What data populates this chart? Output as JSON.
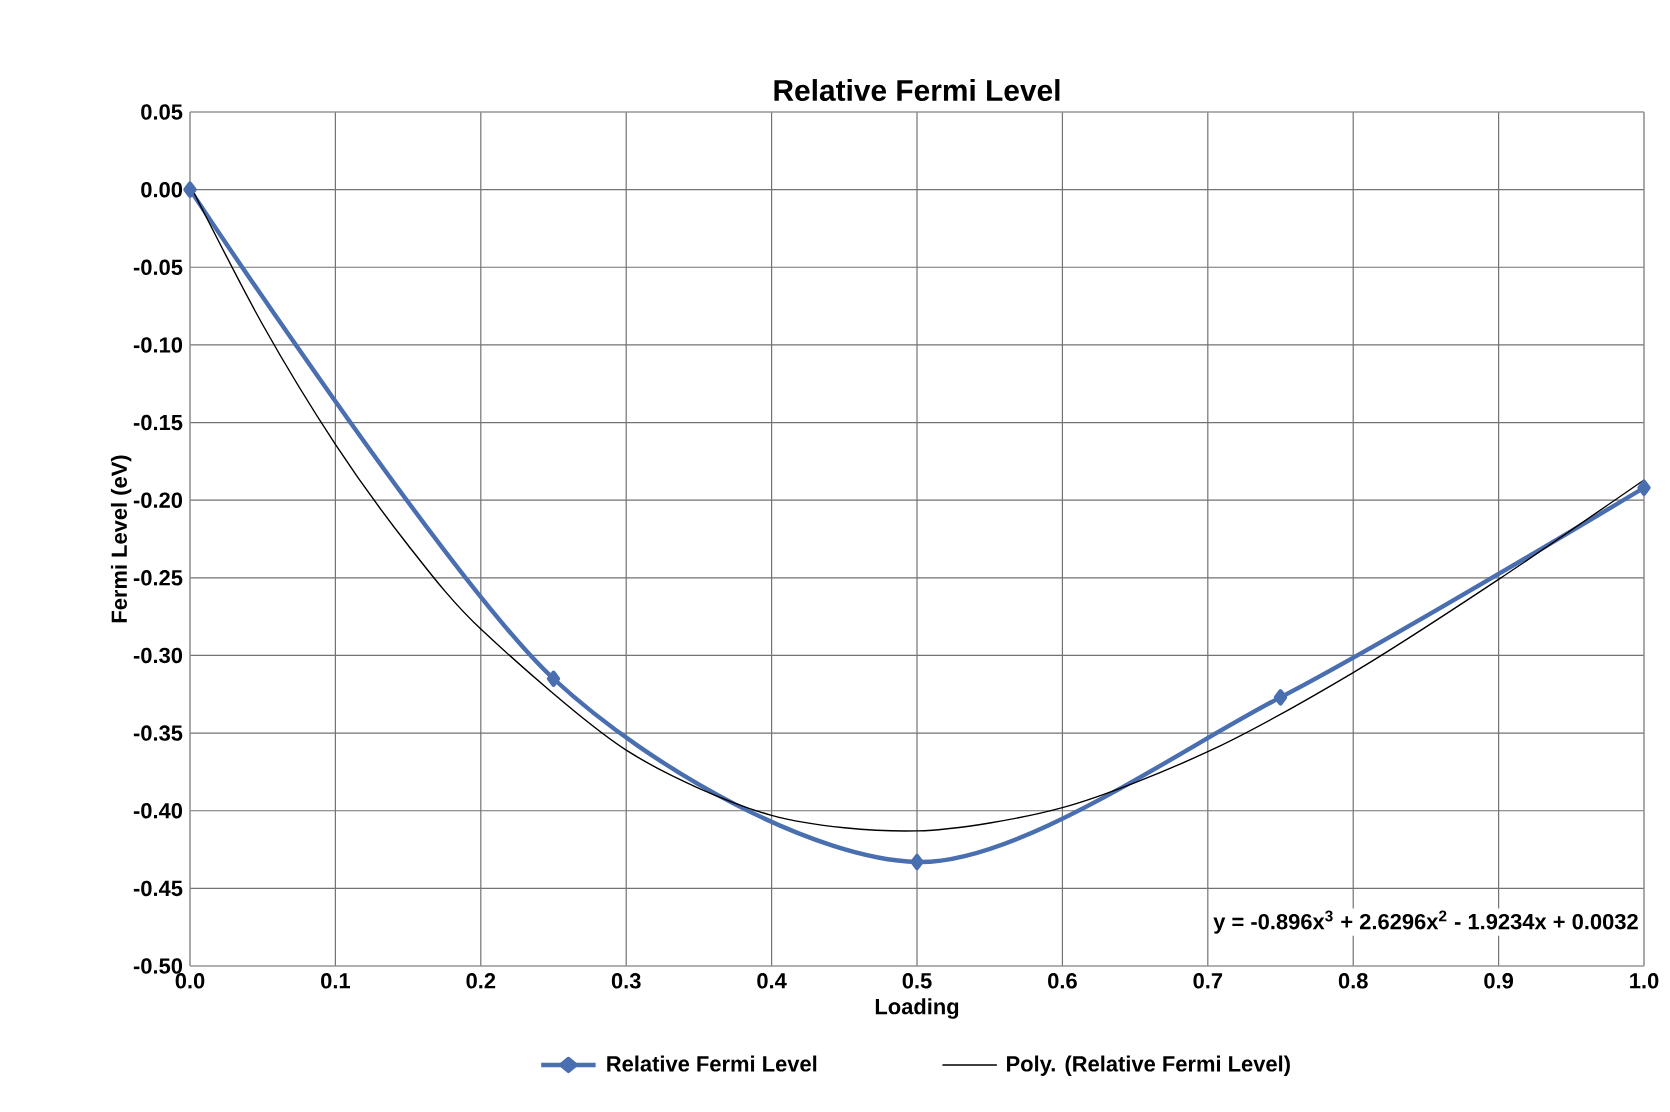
{
  "chart_data": {
    "type": "line",
    "title": "Relative Fermi Level",
    "xlabel": "Loading",
    "ylabel": "Fermi Level (eV)",
    "xlim": [
      0,
      1
    ],
    "ylim": [
      -0.5,
      0.05
    ],
    "xticks": [
      {
        "value": 0,
        "label": "0.0"
      },
      0.1,
      0.2,
      0.3,
      0.4,
      0.5,
      0.6,
      0.7,
      0.8,
      0.9,
      {
        "value": 1,
        "label": "1.0"
      }
    ],
    "yticks": [
      {
        "value": -0.5,
        "label": "-0.50"
      },
      -0.45,
      {
        "value": -0.4,
        "label": "-0.40"
      },
      -0.35,
      {
        "value": -0.3,
        "label": "-0.30"
      },
      -0.25,
      {
        "value": -0.2,
        "label": "-0.20"
      },
      -0.15,
      {
        "value": -0.1,
        "label": "-0.10"
      },
      -0.05,
      {
        "value": 0,
        "label": "0.00"
      },
      0.05
    ],
    "grid": true,
    "legend": "bottom",
    "series": [
      {
        "name": "Relative Fermi Level",
        "color": "#4a6fb0",
        "marker": "diamond",
        "x": [
          0,
          0.25,
          0.5,
          0.75,
          1.0
        ],
        "values": [
          0,
          -0.315,
          -0.433,
          -0.327,
          -0.192
        ]
      },
      {
        "name": "Poly. (Relative Fermi Level)",
        "color": "#000000",
        "marker": "none",
        "x": [
          0,
          0.05,
          0.1,
          0.15,
          0.2,
          0.3,
          0.4,
          0.5,
          0.6,
          0.7,
          0.8,
          0.9,
          1.0
        ],
        "values": [
          0.003,
          -0.087,
          -0.164,
          -0.229,
          -0.283,
          -0.361,
          -0.403,
          -0.413,
          -0.398,
          -0.362,
          -0.311,
          -0.251,
          -0.187
        ]
      }
    ],
    "annotations": [
      "y = -0.896x$^{3}$ + 2.6296x$^{2}$ - 1.9234x + 0.0032"
    ]
  }
}
